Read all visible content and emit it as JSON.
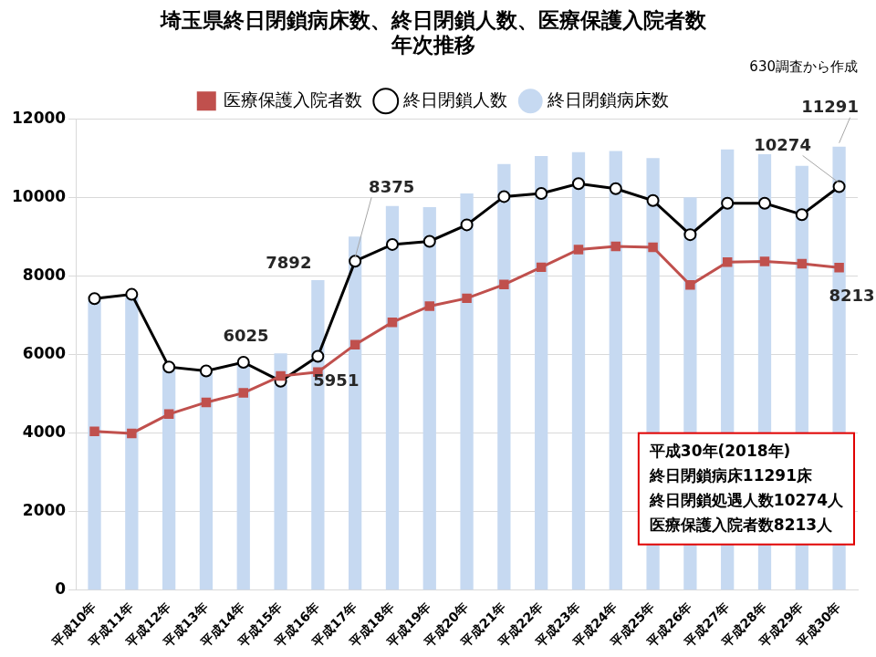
{
  "chart_data": {
    "type": "bar",
    "title": [
      "埼玉県終日閉鎖病床数、終日閉鎖人数、医療保護入院者数",
      "年次推移"
    ],
    "subtitle": "630調査から作成",
    "categories": [
      "平成10年",
      "平成11年",
      "平成12年",
      "平成13年",
      "平成14年",
      "平成15年",
      "平成16年",
      "平成17年",
      "平成18年",
      "平成19年",
      "平成20年",
      "平成21年",
      "平成22年",
      "平成23年",
      "平成24年",
      "平成25年",
      "平成26年",
      "平成27年",
      "平成28年",
      "平成29年",
      "平成30年"
    ],
    "series": [
      {
        "name": "終日閉鎖病床数",
        "type": "bar",
        "color": "#c6d9f1",
        "values": [
          7400,
          7500,
          5700,
          5600,
          5800,
          6025,
          7892,
          9000,
          9780,
          9750,
          10100,
          10850,
          11050,
          11150,
          11180,
          11000,
          10000,
          11220,
          11100,
          10800,
          11291
        ]
      },
      {
        "name": "医療保護入院者数",
        "type": "line",
        "color": "#c0504d",
        "marker": "square",
        "values": [
          4040,
          3990,
          4480,
          4780,
          5020,
          5450,
          5550,
          6250,
          6820,
          7230,
          7430,
          7780,
          8220,
          8670,
          8750,
          8730,
          7770,
          8350,
          8370,
          8310,
          8213
        ]
      },
      {
        "name": "終日閉鎖人数",
        "type": "line",
        "color": "#000000",
        "marker": "circle",
        "values": [
          7420,
          7530,
          5680,
          5580,
          5800,
          5320,
          5951,
          8375,
          8800,
          8880,
          9300,
          10020,
          10100,
          10350,
          10220,
          9920,
          9050,
          9850,
          9850,
          9560,
          10274
        ]
      }
    ],
    "annotations": [
      {
        "text": "11291",
        "series": "終日閉鎖病床数",
        "category": "平成30年"
      },
      {
        "text": "10274",
        "series": "終日閉鎖人数",
        "category": "平成30年"
      },
      {
        "text": "8375",
        "series": "終日閉鎖人数",
        "category": "平成17年"
      },
      {
        "text": "7892",
        "series": "終日閉鎖病床数",
        "category": "平成16年"
      },
      {
        "text": "6025",
        "series": "終日閉鎖病床数",
        "category": "平成15年"
      },
      {
        "text": "5951",
        "series": "終日閉鎖人数",
        "category": "平成16年"
      },
      {
        "text": "8213",
        "series": "医療保護入院者数",
        "category": "平成30年"
      }
    ],
    "callout": [
      "平成30年(2018年)",
      "終日閉鎖病床11291床",
      "終日閉鎖処遇人数10274人",
      "医療保護入院者数8213人"
    ],
    "ylim": [
      0,
      12000
    ],
    "yticks": [
      0,
      2000,
      4000,
      6000,
      8000,
      10000,
      12000
    ],
    "grid": true,
    "legend": "top"
  }
}
